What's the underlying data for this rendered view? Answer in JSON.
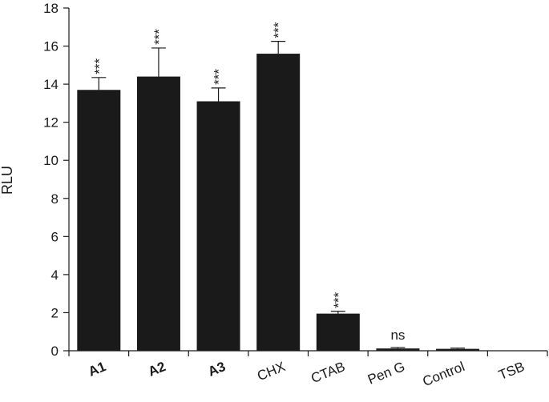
{
  "chart_data": {
    "type": "bar",
    "title": "",
    "xlabel": "",
    "ylabel": "RLU",
    "ylim": [
      0,
      18
    ],
    "yticks": [
      0,
      2,
      4,
      6,
      8,
      10,
      12,
      14,
      16,
      18
    ],
    "grid": false,
    "legend": "none",
    "bar_color": "#1a1a1a",
    "categories": [
      "A1",
      "A2",
      "A3",
      "CHX",
      "CTAB",
      "Pen G",
      "Control",
      "TSB"
    ],
    "bold_categories": [
      "A1",
      "A2",
      "A3"
    ],
    "values": [
      13.7,
      14.4,
      13.1,
      15.6,
      1.95,
      0.12,
      0.1,
      0.0
    ],
    "error": [
      0.65,
      1.5,
      0.7,
      0.65,
      0.12,
      0.05,
      0.04,
      0.0
    ],
    "significance": [
      "***",
      "***",
      "***",
      "***",
      "***",
      "ns",
      "",
      ""
    ]
  }
}
